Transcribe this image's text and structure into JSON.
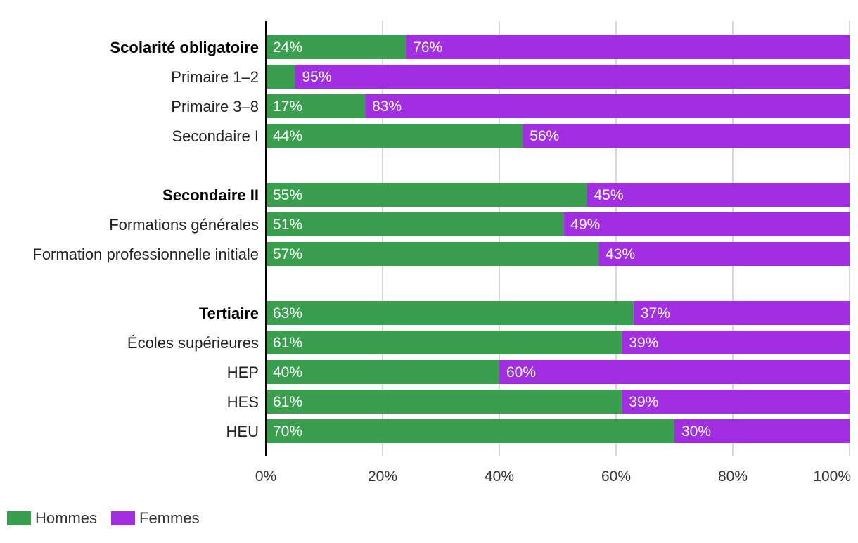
{
  "chart_data": {
    "type": "bar",
    "orientation": "horizontal",
    "stacked": true,
    "categories": [
      {
        "label": "Scolarité obligatoire",
        "bold": true,
        "group": 0,
        "values": [
          24,
          76
        ]
      },
      {
        "label": "Primaire 1–2",
        "bold": false,
        "group": 0,
        "values": [
          5,
          95
        ]
      },
      {
        "label": "Primaire 3–8",
        "bold": false,
        "group": 0,
        "values": [
          17,
          83
        ]
      },
      {
        "label": "Secondaire I",
        "bold": false,
        "group": 0,
        "values": [
          44,
          56
        ]
      },
      {
        "label": "Secondaire II",
        "bold": true,
        "group": 1,
        "values": [
          55,
          45
        ]
      },
      {
        "label": "Formations générales",
        "bold": false,
        "group": 1,
        "values": [
          51,
          49
        ]
      },
      {
        "label": "Formation professionnelle initiale",
        "bold": false,
        "group": 1,
        "values": [
          57,
          43
        ]
      },
      {
        "label": "Tertiaire",
        "bold": true,
        "group": 2,
        "values": [
          63,
          37
        ]
      },
      {
        "label": "Écoles supérieures",
        "bold": false,
        "group": 2,
        "values": [
          61,
          39
        ]
      },
      {
        "label": "HEP",
        "bold": false,
        "group": 2,
        "values": [
          40,
          60
        ]
      },
      {
        "label": "HES",
        "bold": false,
        "group": 2,
        "values": [
          61,
          39
        ]
      },
      {
        "label": "HEU",
        "bold": false,
        "group": 2,
        "values": [
          70,
          30
        ]
      }
    ],
    "series": [
      {
        "name": "Hommes",
        "color": "#3a9e4f"
      },
      {
        "name": "Femmes",
        "color": "#a12ee0"
      }
    ],
    "hidden_labels": [
      "5%"
    ],
    "xlim": [
      0,
      100
    ],
    "xticks": [
      "0%",
      "20%",
      "40%",
      "60%",
      "80%",
      "100%"
    ],
    "xtick_values": [
      0,
      20,
      40,
      60,
      80,
      100
    ],
    "grid": true,
    "legend_position": "bottom-left"
  },
  "legend": {
    "hommes": "Hommes",
    "femmes": "Femmes",
    "hommes_color": "#3a9e4f",
    "femmes_color": "#a12ee0"
  }
}
